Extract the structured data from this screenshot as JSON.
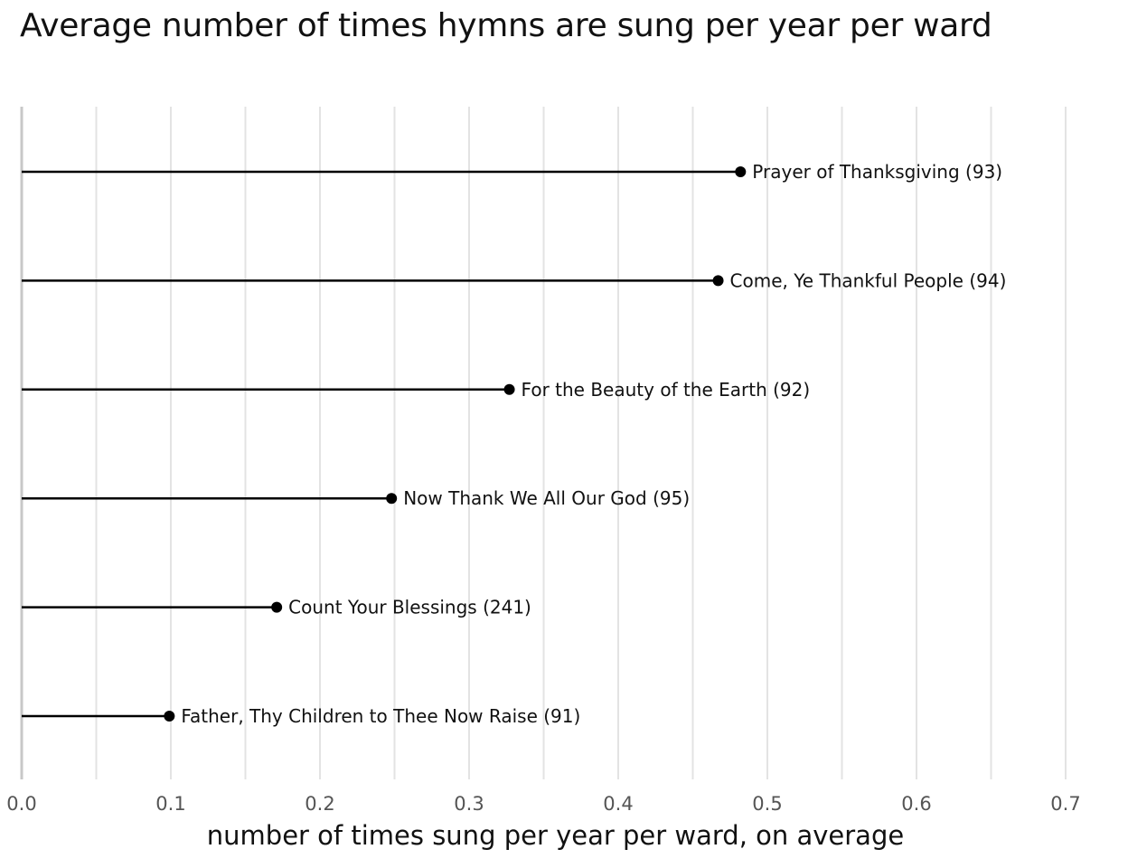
{
  "chart_data": {
    "type": "lollipop",
    "title": "Average number of times hymns are sung per year per ward",
    "xlabel": "number of times sung per year per ward, on average",
    "ylabel": "",
    "xlim": [
      0,
      0.7
    ],
    "xticks": [
      "0.0",
      "0.1",
      "0.2",
      "0.3",
      "0.4",
      "0.5",
      "0.6",
      "0.7"
    ],
    "grid": true,
    "points": [
      {
        "label": "Prayer of Thanksgiving (93)",
        "value": 0.482
      },
      {
        "label": "Come, Ye Thankful People (94)",
        "value": 0.467
      },
      {
        "label": "For the Beauty of the Earth (92)",
        "value": 0.327
      },
      {
        "label": "Now Thank We All Our God (95)",
        "value": 0.248
      },
      {
        "label": "Count Your Blessings (241)",
        "value": 0.171
      },
      {
        "label": "Father, Thy Children to Thee Now Raise (91)",
        "value": 0.099
      }
    ]
  }
}
